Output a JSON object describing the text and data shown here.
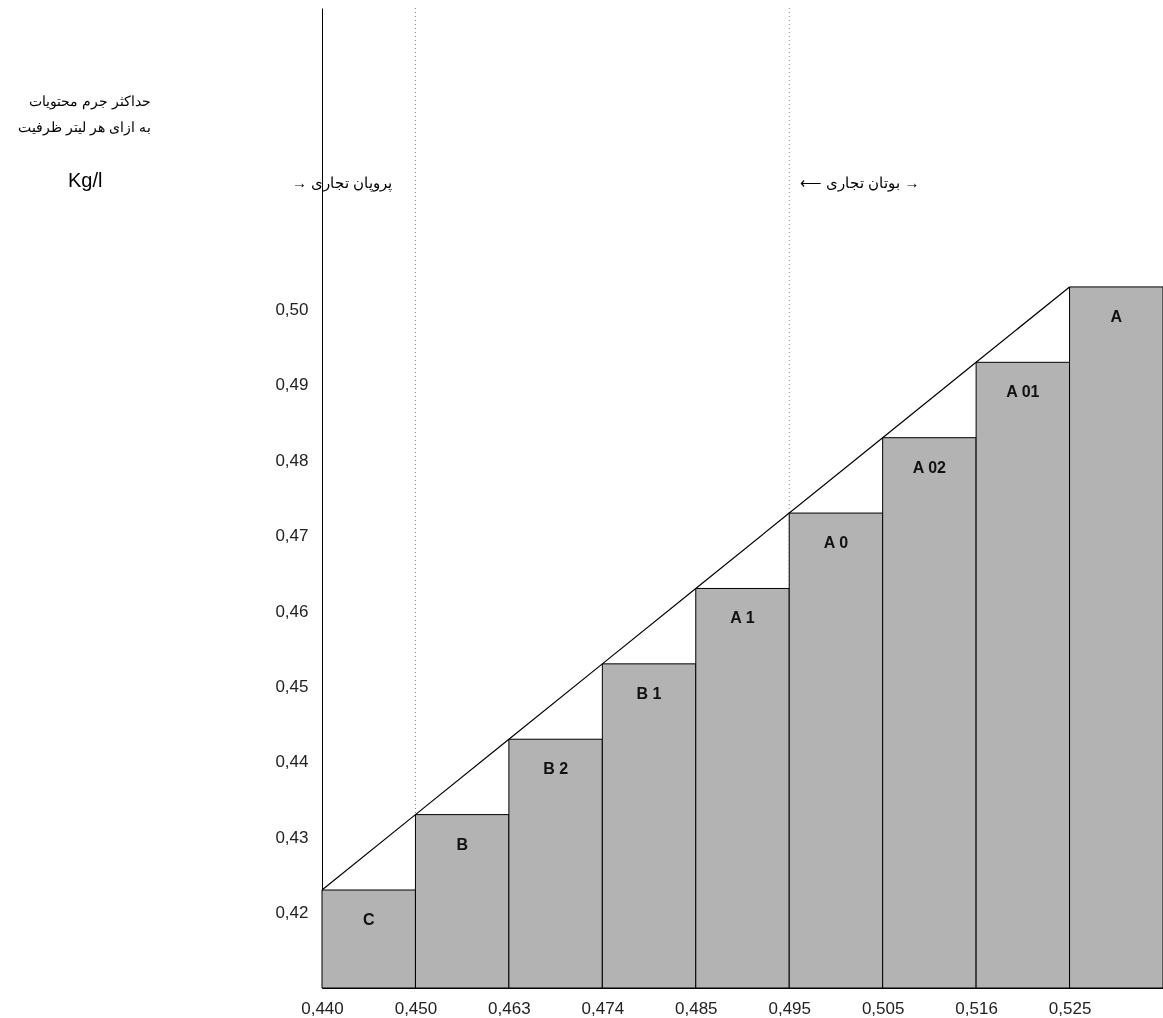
{
  "chart_data": {
    "type": "bar",
    "categories": [
      "0,440",
      "0,450",
      "0,463",
      "0,474",
      "0,485",
      "0,495",
      "0,505",
      "0,516",
      "0,525"
    ],
    "series": [
      {
        "color": "#b3b3b3",
        "values": [
          0.423,
          0.433,
          0.443,
          0.453,
          0.463,
          0.473,
          0.483,
          0.493,
          0.503
        ],
        "value_labels": [
          "C",
          "B",
          "B 2",
          "B 1",
          "A 1",
          "A 0",
          "A 02",
          "A 01",
          "A"
        ]
      },
      {
        "type": "line",
        "color": "#000000",
        "values": [
          0.423,
          0.433,
          0.443,
          0.453,
          0.463,
          0.473,
          0.483,
          0.493,
          0.503
        ]
      }
    ],
    "ylim": [
      0.41,
      0.54
    ],
    "yticks": [
      {
        "value": 0.42,
        "label": "0,42"
      },
      {
        "value": 0.43,
        "label": "0,43"
      },
      {
        "value": 0.44,
        "label": "0,44"
      },
      {
        "value": 0.45,
        "label": "0,45"
      },
      {
        "value": 0.46,
        "label": "0,46"
      },
      {
        "value": 0.47,
        "label": "0,47"
      },
      {
        "value": 0.48,
        "label": "0,48"
      },
      {
        "value": 0.49,
        "label": "0,49"
      },
      {
        "value": 0.5,
        "label": "0,50"
      }
    ],
    "ref_lines": [
      {
        "axis": "x",
        "value": "0,450",
        "line_style": "dotted",
        "color": "#808080"
      },
      {
        "axis": "x",
        "value": "0,495",
        "line_style": "dotted",
        "color": "#808080"
      }
    ],
    "annotations": [
      "حداکثر جرم محتویات\nبه ازای هر لیتر ظرفیت",
      "Kg/l",
      "→ پروپان تجاری",
      "⟵ بوتان تجاری →"
    ]
  }
}
